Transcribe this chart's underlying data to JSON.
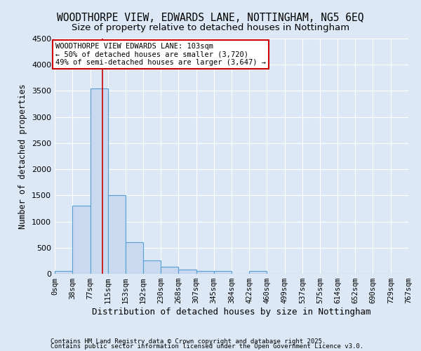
{
  "title": "WOODTHORPE VIEW, EDWARDS LANE, NOTTINGHAM, NG5 6EQ",
  "subtitle": "Size of property relative to detached houses in Nottingham",
  "xlabel": "Distribution of detached houses by size in Nottingham",
  "ylabel": "Number of detached properties",
  "footnote1": "Contains HM Land Registry data © Crown copyright and database right 2025.",
  "footnote2": "Contains public sector information licensed under the Open Government Licence v3.0.",
  "bin_edges": [
    0,
    38,
    77,
    115,
    153,
    192,
    230,
    268,
    307,
    345,
    384,
    422,
    460,
    499,
    537,
    575,
    614,
    652,
    690,
    729,
    767
  ],
  "bar_heights": [
    50,
    1300,
    3550,
    1500,
    600,
    250,
    130,
    80,
    50,
    50,
    0,
    50,
    0,
    0,
    0,
    0,
    0,
    0,
    0,
    0
  ],
  "bar_color": "#c8d9f0",
  "bar_edge_color": "#5a9fd4",
  "red_line_x": 103,
  "annotation_line1": "WOODTHORPE VIEW EDWARDS LANE: 103sqm",
  "annotation_line2": "← 50% of detached houses are smaller (3,720)",
  "annotation_line3": "49% of semi-detached houses are larger (3,647) →",
  "annotation_box_color": "#ffffff",
  "annotation_box_edge": "#cc0000",
  "ylim": [
    0,
    4500
  ],
  "yticks": [
    0,
    500,
    1000,
    1500,
    2000,
    2500,
    3000,
    3500,
    4000,
    4500
  ],
  "background_color": "#dce8f5",
  "grid_color": "#ffffff",
  "title_fontsize": 10.5,
  "subtitle_fontsize": 9.5,
  "axis_label_fontsize": 8.5,
  "tick_fontsize": 7.5,
  "annotation_fontsize": 7.5,
  "footnote_fontsize": 6.5
}
